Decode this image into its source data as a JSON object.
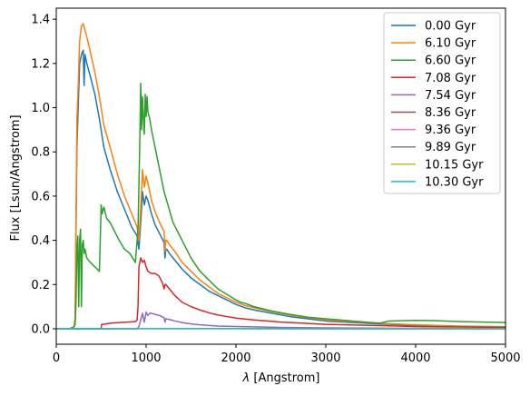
{
  "chart_data": {
    "type": "line",
    "title": "",
    "xlabel_symbol": "λ",
    "xlabel_rest": " [Angstrom]",
    "ylabel": "Flux [Lsun/Angstrom]",
    "xlim": [
      0,
      5000
    ],
    "ylim": [
      -0.07,
      1.45
    ],
    "xticks": [
      0,
      1000,
      2000,
      3000,
      4000,
      5000
    ],
    "xtick_labels": [
      "0",
      "1000",
      "2000",
      "3000",
      "4000",
      "5000"
    ],
    "yticks": [
      0.0,
      0.2,
      0.4,
      0.6,
      0.8,
      1.0,
      1.2,
      1.4
    ],
    "ytick_labels": [
      "0.0",
      "0.2",
      "0.4",
      "0.6",
      "0.8",
      "1.0",
      "1.2",
      "1.4"
    ],
    "grid": false,
    "legend_position": "top-right",
    "series": [
      {
        "name": "0.00 Gyr",
        "color": "#1f77b4",
        "x": [
          0,
          150,
          200,
          210,
          220,
          230,
          240,
          260,
          280,
          300,
          310,
          320,
          340,
          380,
          430,
          480,
          530,
          600,
          680,
          760,
          840,
          900,
          920,
          940,
          960,
          980,
          1000,
          1020,
          1040,
          1060,
          1100,
          1150,
          1200,
          1210,
          1220,
          1230,
          1260,
          1320,
          1400,
          1500,
          1600,
          1700,
          1800,
          1900,
          2000,
          2100,
          2200,
          2400,
          2600,
          2800,
          3000,
          3300,
          3600,
          4000,
          4500,
          5000
        ],
        "y": [
          0.0,
          0.0,
          0.01,
          0.05,
          0.45,
          0.82,
          0.95,
          1.2,
          1.24,
          1.26,
          1.1,
          1.24,
          1.2,
          1.14,
          1.06,
          0.95,
          0.82,
          0.72,
          0.62,
          0.54,
          0.46,
          0.42,
          0.36,
          0.48,
          0.62,
          0.56,
          0.6,
          0.58,
          0.55,
          0.52,
          0.47,
          0.43,
          0.39,
          0.32,
          0.36,
          0.36,
          0.34,
          0.31,
          0.27,
          0.23,
          0.2,
          0.17,
          0.15,
          0.13,
          0.11,
          0.095,
          0.085,
          0.07,
          0.055,
          0.045,
          0.035,
          0.028,
          0.022,
          0.015,
          0.01,
          0.008
        ]
      },
      {
        "name": "6.10 Gyr",
        "color": "#ff7f0e",
        "x": [
          0,
          150,
          200,
          210,
          220,
          230,
          240,
          260,
          280,
          300,
          320,
          340,
          380,
          430,
          480,
          530,
          600,
          680,
          760,
          840,
          900,
          920,
          940,
          960,
          980,
          1000,
          1020,
          1040,
          1060,
          1100,
          1150,
          1200,
          1210,
          1220,
          1230,
          1260,
          1320,
          1400,
          1500,
          1600,
          1700,
          1800,
          1900,
          2000,
          2100,
          2200,
          2400,
          2600,
          2800,
          3000,
          3300,
          3600,
          4000,
          4500,
          5000
        ],
        "y": [
          0.0,
          0.0,
          0.01,
          0.05,
          0.5,
          0.95,
          1.05,
          1.3,
          1.37,
          1.38,
          1.35,
          1.32,
          1.25,
          1.16,
          1.05,
          0.92,
          0.82,
          0.7,
          0.6,
          0.52,
          0.46,
          0.4,
          0.55,
          0.72,
          0.64,
          0.69,
          0.66,
          0.62,
          0.58,
          0.53,
          0.48,
          0.44,
          0.35,
          0.4,
          0.4,
          0.38,
          0.35,
          0.3,
          0.26,
          0.22,
          0.19,
          0.16,
          0.14,
          0.12,
          0.105,
          0.095,
          0.078,
          0.062,
          0.05,
          0.04,
          0.032,
          0.025,
          0.018,
          0.012,
          0.009
        ]
      },
      {
        "name": "6.60 Gyr",
        "color": "#2ca02c",
        "x": [
          0,
          150,
          200,
          210,
          220,
          230,
          240,
          250,
          260,
          270,
          280,
          290,
          300,
          310,
          320,
          340,
          380,
          430,
          480,
          500,
          510,
          530,
          560,
          600,
          650,
          700,
          760,
          820,
          880,
          910,
          920,
          930,
          940,
          950,
          960,
          970,
          980,
          990,
          1000,
          1010,
          1020,
          1040,
          1060,
          1080,
          1100,
          1150,
          1200,
          1250,
          1300,
          1400,
          1500,
          1600,
          1700,
          1800,
          1900,
          2000,
          2050,
          2100,
          2200,
          2400,
          2600,
          2800,
          3000,
          3300,
          3600,
          3700,
          4000,
          4200,
          4500,
          5000
        ],
        "y": [
          0.0,
          0.0,
          0.01,
          0.02,
          0.12,
          0.35,
          0.42,
          0.1,
          0.4,
          0.45,
          0.1,
          0.38,
          0.4,
          0.34,
          0.36,
          0.32,
          0.3,
          0.28,
          0.26,
          0.56,
          0.52,
          0.55,
          0.5,
          0.48,
          0.44,
          0.4,
          0.36,
          0.34,
          0.3,
          0.45,
          0.65,
          0.85,
          1.11,
          0.9,
          1.05,
          0.95,
          0.88,
          1.06,
          0.96,
          1.05,
          0.98,
          0.95,
          0.9,
          0.86,
          0.82,
          0.72,
          0.62,
          0.55,
          0.48,
          0.4,
          0.32,
          0.26,
          0.22,
          0.18,
          0.155,
          0.13,
          0.12,
          0.115,
          0.1,
          0.08,
          0.065,
          0.052,
          0.045,
          0.035,
          0.025,
          0.035,
          0.038,
          0.037,
          0.032,
          0.028
        ]
      },
      {
        "name": "7.08 Gyr",
        "color": "#d62728",
        "x": [
          0,
          500,
          505,
          520,
          600,
          700,
          800,
          880,
          900,
          910,
          920,
          940,
          960,
          980,
          1000,
          1020,
          1060,
          1100,
          1140,
          1180,
          1200,
          1210,
          1220,
          1240,
          1260,
          1320,
          1400,
          1500,
          1600,
          1700,
          1800,
          1900,
          2000,
          2200,
          2500,
          3000,
          3500,
          4000,
          4500,
          5000
        ],
        "y": [
          0.0,
          0.0,
          0.02,
          0.02,
          0.025,
          0.028,
          0.03,
          0.032,
          0.04,
          0.1,
          0.28,
          0.32,
          0.3,
          0.31,
          0.28,
          0.26,
          0.25,
          0.25,
          0.24,
          0.21,
          0.18,
          0.2,
          0.2,
          0.19,
          0.18,
          0.15,
          0.12,
          0.1,
          0.085,
          0.072,
          0.062,
          0.055,
          0.048,
          0.04,
          0.03,
          0.02,
          0.015,
          0.01,
          0.008,
          0.006
        ]
      },
      {
        "name": "7.54 Gyr",
        "color": "#9467bd",
        "x": [
          0,
          900,
          920,
          940,
          960,
          980,
          1000,
          1020,
          1040,
          1060,
          1100,
          1150,
          1200,
          1210,
          1220,
          1260,
          1320,
          1400,
          1500,
          1600,
          1800,
          2000,
          2500,
          3000,
          3500,
          4000,
          5000
        ],
        "y": [
          0.0,
          0.0,
          0.01,
          0.04,
          0.07,
          0.03,
          0.075,
          0.06,
          0.07,
          0.07,
          0.065,
          0.06,
          0.05,
          0.03,
          0.045,
          0.042,
          0.035,
          0.028,
          0.022,
          0.018,
          0.012,
          0.01,
          0.006,
          0.004,
          0.003,
          0.002,
          0.001
        ]
      },
      {
        "name": "8.36 Gyr",
        "color": "#8c564b",
        "x": [
          0,
          1000,
          2000,
          3000,
          4000,
          5000
        ],
        "y": [
          0.0,
          0.001,
          0.001,
          0.0005,
          0.0003,
          0.0002
        ]
      },
      {
        "name": "9.36 Gyr",
        "color": "#e377c2",
        "x": [
          0,
          1000,
          2000,
          3000,
          4000,
          5000
        ],
        "y": [
          0.0,
          0.001,
          0.0008,
          0.0004,
          0.0002,
          0.0001
        ]
      },
      {
        "name": "9.89 Gyr",
        "color": "#7f7f7f",
        "x": [
          0,
          1000,
          2000,
          3000,
          4000,
          5000
        ],
        "y": [
          0.0,
          0.0008,
          0.0006,
          0.0003,
          0.0002,
          0.0001
        ]
      },
      {
        "name": "10.15 Gyr",
        "color": "#bcbd22",
        "x": [
          0,
          1000,
          2000,
          3000,
          4000,
          5000
        ],
        "y": [
          0.0,
          0.0006,
          0.0005,
          0.0003,
          0.0002,
          0.0001
        ]
      },
      {
        "name": "10.30 Gyr",
        "color": "#17becf",
        "x": [
          0,
          1000,
          2000,
          3000,
          4000,
          5000
        ],
        "y": [
          0.0,
          0.0005,
          0.0004,
          0.0002,
          0.0001,
          0.0001
        ]
      }
    ]
  }
}
